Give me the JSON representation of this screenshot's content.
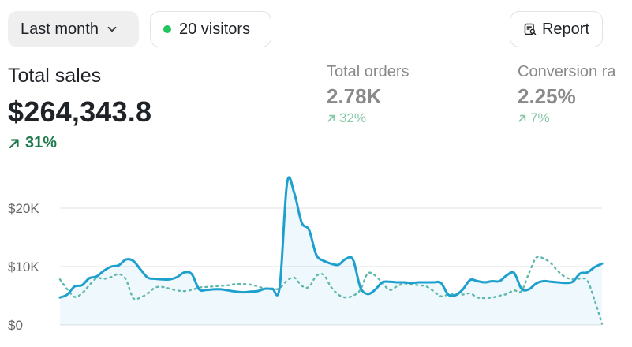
{
  "toolbar": {
    "period_label": "Last month",
    "visitors_label": "20 visitors",
    "report_label": "Report",
    "icons": {
      "period": "chevron-down-icon",
      "visitors": "status-dot-icon",
      "report": "report-search-icon"
    },
    "status_color": "#22c55e"
  },
  "kpis": {
    "total_sales": {
      "label": "Total sales",
      "value": "$264,343.8",
      "delta": "31%"
    },
    "total_orders": {
      "label": "Total orders",
      "value": "2.78K",
      "delta": "32%"
    },
    "conversion": {
      "label": "Conversion ra",
      "value": "2.25%",
      "delta": "7%"
    }
  },
  "chart_data": {
    "type": "line",
    "yticks": [
      "$0",
      "$10K",
      "$20K"
    ],
    "ylim": [
      0,
      25000
    ],
    "grid": true,
    "colors": {
      "current": "#1ea0cf",
      "previous": "#5fb8ae"
    },
    "series": [
      {
        "style": "solid",
        "values": [
          4700,
          5200,
          6600,
          6800,
          8000,
          8300,
          9300,
          10000,
          10200,
          11200,
          11000,
          9500,
          8100,
          7900,
          7800,
          7800,
          8200,
          9000,
          8700,
          6100,
          6000,
          6100,
          6100,
          5900,
          5700,
          5600,
          5700,
          5800,
          6200,
          6200,
          6500,
          24300,
          22500,
          17500,
          16300,
          12000,
          11000,
          10500,
          10300,
          11300,
          11200,
          6500,
          5300,
          6000,
          7300,
          7400,
          7300,
          7300,
          7200,
          7300,
          7300,
          7300,
          7200,
          5200,
          5100,
          6100,
          7700,
          7500,
          7300,
          7500,
          7500,
          8500,
          8900,
          6200,
          6100,
          7100,
          7500,
          7400,
          7300,
          7200,
          7400,
          8800,
          9000,
          9900,
          10500
        ]
      },
      {
        "style": "dotted",
        "values": [
          7800,
          6100,
          4800,
          5400,
          6800,
          8000,
          7900,
          8200,
          8700,
          7800,
          4600,
          4700,
          5400,
          6400,
          6500,
          6200,
          5900,
          5800,
          6000,
          6400,
          6500,
          6600,
          6700,
          6800,
          7000,
          7000,
          6900,
          6600,
          6200,
          6100,
          6300,
          7600,
          8100,
          6700,
          6500,
          8400,
          8600,
          6500,
          5200,
          4700,
          5000,
          6000,
          8800,
          8500,
          7200,
          6000,
          6600,
          7100,
          6900,
          6800,
          6600,
          5800,
          4900,
          5200,
          5300,
          5200,
          5400,
          4700,
          4600,
          4700,
          5000,
          5300,
          5900,
          5800,
          8800,
          11500,
          11400,
          10600,
          9200,
          8200,
          7800,
          7900,
          7600,
          4200,
          200
        ]
      }
    ]
  }
}
